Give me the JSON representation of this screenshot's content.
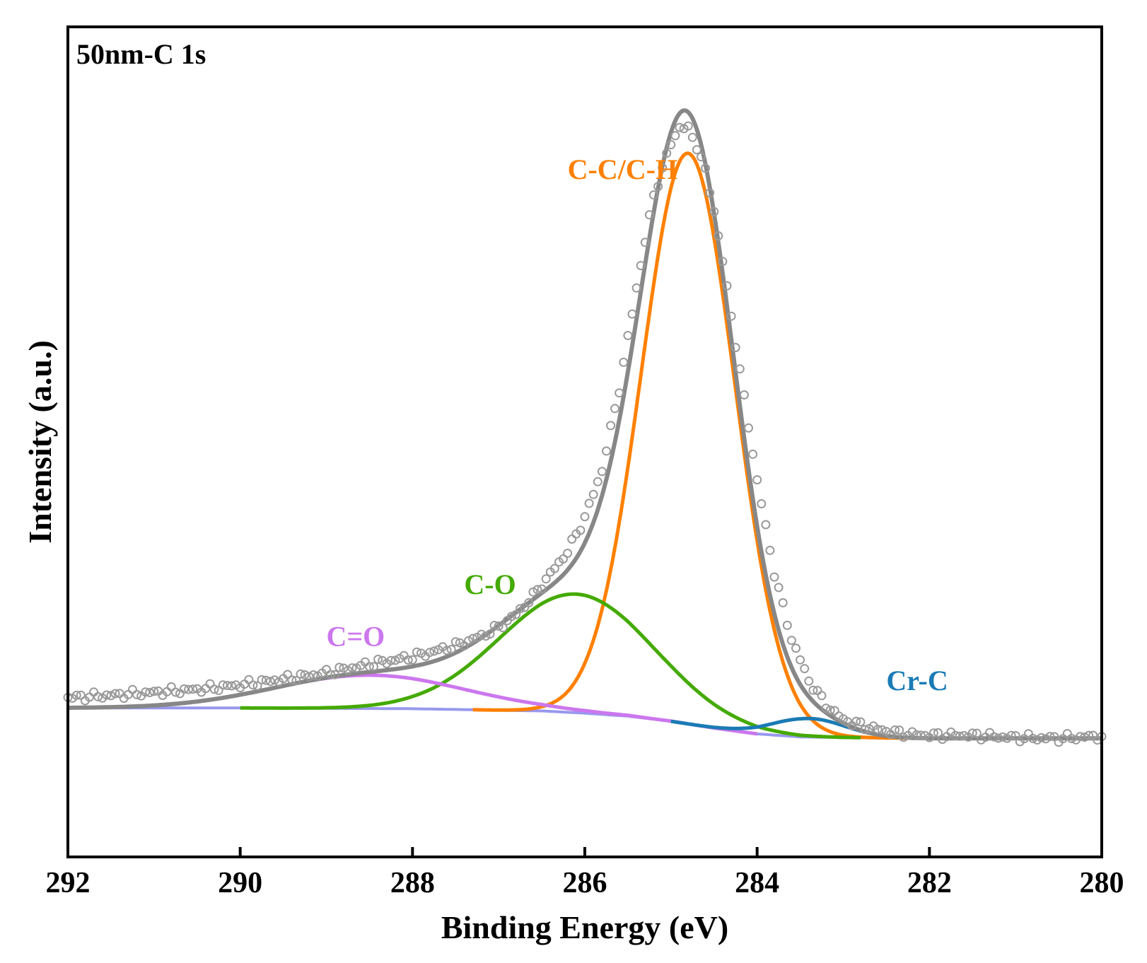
{
  "chart_data": {
    "type": "line",
    "title": "50nm-C 1s",
    "xlabel": "Binding Energy (eV)",
    "ylabel": "Intensity (a.u.)",
    "xlim": [
      292,
      280
    ],
    "x_reversed": true,
    "ylim": [
      -0.12,
      1.0
    ],
    "y_ticks_shown": false,
    "grid": false,
    "x_ticks": [
      "292",
      "290",
      "288",
      "286",
      "284",
      "282",
      "280"
    ],
    "colors": {
      "raw": "#999999",
      "envelope": "#878787",
      "cc": "#ff8000",
      "co": "#44aa00",
      "ceo": "#cc77ee",
      "crc": "#1a7bb5",
      "background": "#9898ee",
      "axes": "#000000"
    },
    "annotations": [
      {
        "id": "cc",
        "text": "C-C/C-H",
        "x": 286.2,
        "y": 0.795,
        "color": "#ff8000"
      },
      {
        "id": "co",
        "text": "C-O",
        "x": 287.4,
        "y": 0.235,
        "color": "#44aa00"
      },
      {
        "id": "ceo",
        "text": "C=O",
        "x": 289.0,
        "y": 0.165,
        "color": "#cc77ee"
      },
      {
        "id": "crc",
        "text": "Cr-C",
        "x": 282.5,
        "y": 0.105,
        "color": "#1a7bb5"
      }
    ],
    "background_curve": {
      "x": [
        292.0,
        290.0,
        288.0,
        286.5,
        286.0,
        285.5,
        285.0,
        284.5,
        284.0,
        283.5,
        283.0,
        282.0,
        281.0,
        280.0
      ],
      "y": [
        0.081,
        0.081,
        0.08,
        0.077,
        0.074,
        0.07,
        0.063,
        0.054,
        0.046,
        0.042,
        0.041,
        0.04,
        0.04,
        0.04
      ]
    },
    "series": [
      {
        "id": "cc",
        "center": 284.8,
        "fwhm": 1.28,
        "height": 0.77
      },
      {
        "id": "co",
        "center": 286.1,
        "fwhm": 2.1,
        "height": 0.16
      },
      {
        "id": "ceo",
        "center": 288.5,
        "fwhm": 2.6,
        "height": 0.045
      },
      {
        "id": "crc",
        "center": 283.4,
        "fwhm": 1.0,
        "height": 0.025
      }
    ],
    "raw_data": {
      "x": [
        292.0,
        291.5,
        291.0,
        290.5,
        290.0,
        289.5,
        289.0,
        288.5,
        288.0,
        287.5,
        287.2,
        287.0,
        286.8,
        286.6,
        286.4,
        286.2,
        286.0,
        285.8,
        285.6,
        285.4,
        285.2,
        285.0,
        284.9,
        284.8,
        284.7,
        284.6,
        284.5,
        284.4,
        284.2,
        284.0,
        283.8,
        283.6,
        283.4,
        283.2,
        283.0,
        282.8,
        282.6,
        282.4,
        282.2,
        282.0,
        281.5,
        281.0,
        280.5,
        280.0
      ],
      "y": [
        0.095,
        0.098,
        0.102,
        0.106,
        0.112,
        0.12,
        0.128,
        0.14,
        0.15,
        0.165,
        0.178,
        0.19,
        0.207,
        0.232,
        0.262,
        0.292,
        0.338,
        0.402,
        0.512,
        0.648,
        0.773,
        0.843,
        0.865,
        0.862,
        0.84,
        0.805,
        0.752,
        0.684,
        0.536,
        0.388,
        0.263,
        0.174,
        0.118,
        0.085,
        0.065,
        0.058,
        0.052,
        0.048,
        0.045,
        0.044,
        0.044,
        0.041,
        0.04,
        0.043
      ]
    }
  }
}
